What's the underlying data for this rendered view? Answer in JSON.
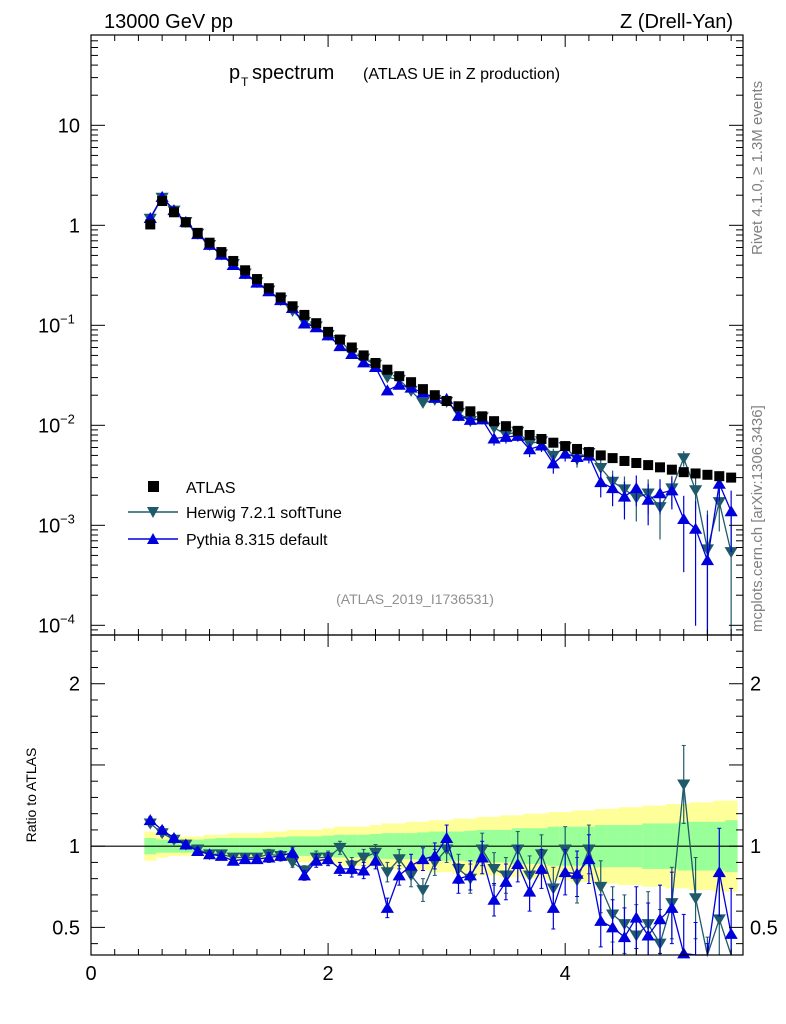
{
  "header": {
    "left": "13000 GeV pp",
    "right": "Z (Drell-Yan)"
  },
  "side_text": {
    "rivet": "Rivet 4.1.0, ≥ 1.3M events",
    "mcplots": "mcplots.cern.ch [arXiv:1306.3436]"
  },
  "chart_data": {
    "type": "scatter",
    "title_main": "p",
    "title_sub": "T",
    "title_rest": " spectrum",
    "title_extra": "(ATLAS UE in Z production)",
    "analysis_tag": "(ATLAS_2019_I1736531)",
    "xlabel": "",
    "ylabel_ratio": "Ratio to ATLAS",
    "xlim": [
      0,
      5.5
    ],
    "ylim_main": [
      8e-05,
      80
    ],
    "ylim_ratio": [
      0.33,
      2.3
    ],
    "y_scale_main": "log",
    "legend_position": "bottom-left",
    "x_ticks": [
      {
        "value": 0,
        "label": "0"
      },
      {
        "value": 2,
        "label": "2"
      },
      {
        "value": 4,
        "label": "4"
      }
    ],
    "y_ticks_main": [
      {
        "value": 10,
        "label": "10"
      },
      {
        "value": 1,
        "label": "1"
      },
      {
        "value": 0.1,
        "base": "10",
        "exp": "−1"
      },
      {
        "value": 0.01,
        "base": "10",
        "exp": "−2"
      },
      {
        "value": 0.001,
        "base": "10",
        "exp": "−3"
      },
      {
        "value": 0.0001,
        "base": "10",
        "exp": "−4"
      }
    ],
    "y_ticks_ratio": [
      {
        "value": 2,
        "label": "2"
      },
      {
        "value": 1,
        "label": "1"
      },
      {
        "value": 0.5,
        "label": "0.5"
      }
    ],
    "x": [
      0.5,
      0.6,
      0.7,
      0.8,
      0.9,
      1.0,
      1.1,
      1.2,
      1.3,
      1.4,
      1.5,
      1.6,
      1.7,
      1.8,
      1.9,
      2.0,
      2.1,
      2.2,
      2.3,
      2.4,
      2.5,
      2.6,
      2.7,
      2.8,
      2.9,
      3.0,
      3.1,
      3.2,
      3.3,
      3.4,
      3.5,
      3.6,
      3.7,
      3.8,
      3.9,
      4.0,
      4.1,
      4.2,
      4.3,
      4.4,
      4.5,
      4.6,
      4.7,
      4.8,
      4.9,
      5.0,
      5.1,
      5.2,
      5.3,
      5.4
    ],
    "series": [
      {
        "name": "ATLAS",
        "color": "#000000",
        "marker": "square",
        "values": [
          1.02,
          1.75,
          1.35,
          1.07,
          0.84,
          0.67,
          0.54,
          0.44,
          0.355,
          0.29,
          0.235,
          0.19,
          0.155,
          0.127,
          0.105,
          0.086,
          0.072,
          0.06,
          0.05,
          0.042,
          0.036,
          0.031,
          0.027,
          0.023,
          0.02,
          0.0175,
          0.0155,
          0.0138,
          0.0123,
          0.011,
          0.0098,
          0.0088,
          0.008,
          0.0073,
          0.0067,
          0.0062,
          0.0058,
          0.0054,
          0.005,
          0.0047,
          0.0044,
          0.0042,
          0.004,
          0.0038,
          0.0036,
          0.0034,
          0.0033,
          0.0032,
          0.0031,
          0.003
        ],
        "band_stat_rel": [
          0.05,
          0.04,
          0.04,
          0.04,
          0.04,
          0.045,
          0.05,
          0.05,
          0.05,
          0.05,
          0.05,
          0.055,
          0.06,
          0.06,
          0.06,
          0.065,
          0.07,
          0.07,
          0.07,
          0.075,
          0.08,
          0.08,
          0.08,
          0.085,
          0.09,
          0.09,
          0.09,
          0.095,
          0.1,
          0.1,
          0.1,
          0.11,
          0.11,
          0.11,
          0.12,
          0.12,
          0.12,
          0.12,
          0.13,
          0.13,
          0.13,
          0.13,
          0.14,
          0.14,
          0.14,
          0.15,
          0.15,
          0.15,
          0.15,
          0.16
        ],
        "band_tot_rel": [
          0.09,
          0.07,
          0.06,
          0.06,
          0.06,
          0.07,
          0.07,
          0.08,
          0.08,
          0.08,
          0.09,
          0.09,
          0.1,
          0.1,
          0.1,
          0.11,
          0.12,
          0.12,
          0.12,
          0.13,
          0.14,
          0.14,
          0.15,
          0.15,
          0.16,
          0.16,
          0.17,
          0.17,
          0.18,
          0.18,
          0.19,
          0.19,
          0.2,
          0.2,
          0.21,
          0.21,
          0.22,
          0.22,
          0.23,
          0.23,
          0.24,
          0.24,
          0.25,
          0.25,
          0.26,
          0.26,
          0.27,
          0.27,
          0.28,
          0.28
        ]
      },
      {
        "name": "Herwig 7.2.1 softTune",
        "color": "#1f5a6a",
        "marker": "triangle-down",
        "ratio": [
          1.14,
          1.08,
          1.04,
          1.01,
          0.98,
          0.95,
          0.95,
          0.93,
          0.93,
          0.93,
          0.95,
          0.94,
          0.9,
          0.85,
          0.93,
          0.93,
          0.99,
          0.88,
          0.93,
          0.96,
          0.84,
          0.92,
          0.82,
          0.73,
          0.9,
          0.98,
          0.86,
          0.8,
          0.98,
          0.86,
          0.82,
          0.98,
          0.82,
          0.95,
          0.74,
          0.98,
          0.79,
          0.98,
          0.75,
          0.58,
          0.52,
          0.45,
          0.52,
          0.4,
          0.65,
          1.38,
          0.68,
          0.18,
          0.55,
          0.18
        ],
        "ratio_err": [
          0.02,
          0.02,
          0.02,
          0.02,
          0.02,
          0.02,
          0.02,
          0.02,
          0.02,
          0.02,
          0.03,
          0.03,
          0.03,
          0.03,
          0.04,
          0.04,
          0.04,
          0.05,
          0.05,
          0.05,
          0.06,
          0.06,
          0.07,
          0.07,
          0.08,
          0.08,
          0.09,
          0.09,
          0.1,
          0.1,
          0.11,
          0.11,
          0.12,
          0.12,
          0.13,
          0.14,
          0.14,
          0.15,
          0.16,
          0.17,
          0.18,
          0.19,
          0.2,
          0.21,
          0.22,
          0.24,
          0.25,
          0.26,
          0.27,
          0.28
        ]
      },
      {
        "name": "Pythia 8.315 default",
        "color": "#0000dd",
        "marker": "triangle-up",
        "ratio": [
          1.16,
          1.1,
          1.05,
          1.01,
          0.97,
          0.95,
          0.94,
          0.91,
          0.92,
          0.92,
          0.93,
          0.94,
          0.96,
          0.82,
          0.91,
          0.92,
          0.86,
          0.86,
          0.85,
          0.91,
          0.62,
          0.82,
          0.88,
          0.92,
          0.94,
          1.05,
          0.8,
          0.82,
          0.93,
          0.67,
          0.78,
          0.89,
          0.72,
          0.86,
          0.62,
          0.84,
          0.83,
          0.92,
          0.54,
          0.5,
          0.44,
          0.56,
          0.45,
          0.55,
          0.62,
          0.34,
          0.28,
          0.14,
          0.84,
          0.46
        ],
        "ratio_err": [
          0.02,
          0.02,
          0.02,
          0.02,
          0.02,
          0.02,
          0.02,
          0.02,
          0.02,
          0.02,
          0.03,
          0.03,
          0.03,
          0.03,
          0.04,
          0.04,
          0.04,
          0.05,
          0.05,
          0.05,
          0.06,
          0.06,
          0.07,
          0.07,
          0.08,
          0.08,
          0.09,
          0.09,
          0.1,
          0.1,
          0.11,
          0.11,
          0.12,
          0.12,
          0.13,
          0.14,
          0.14,
          0.15,
          0.16,
          0.17,
          0.18,
          0.19,
          0.2,
          0.21,
          0.22,
          0.24,
          0.25,
          0.26,
          0.27,
          0.28
        ]
      }
    ]
  }
}
